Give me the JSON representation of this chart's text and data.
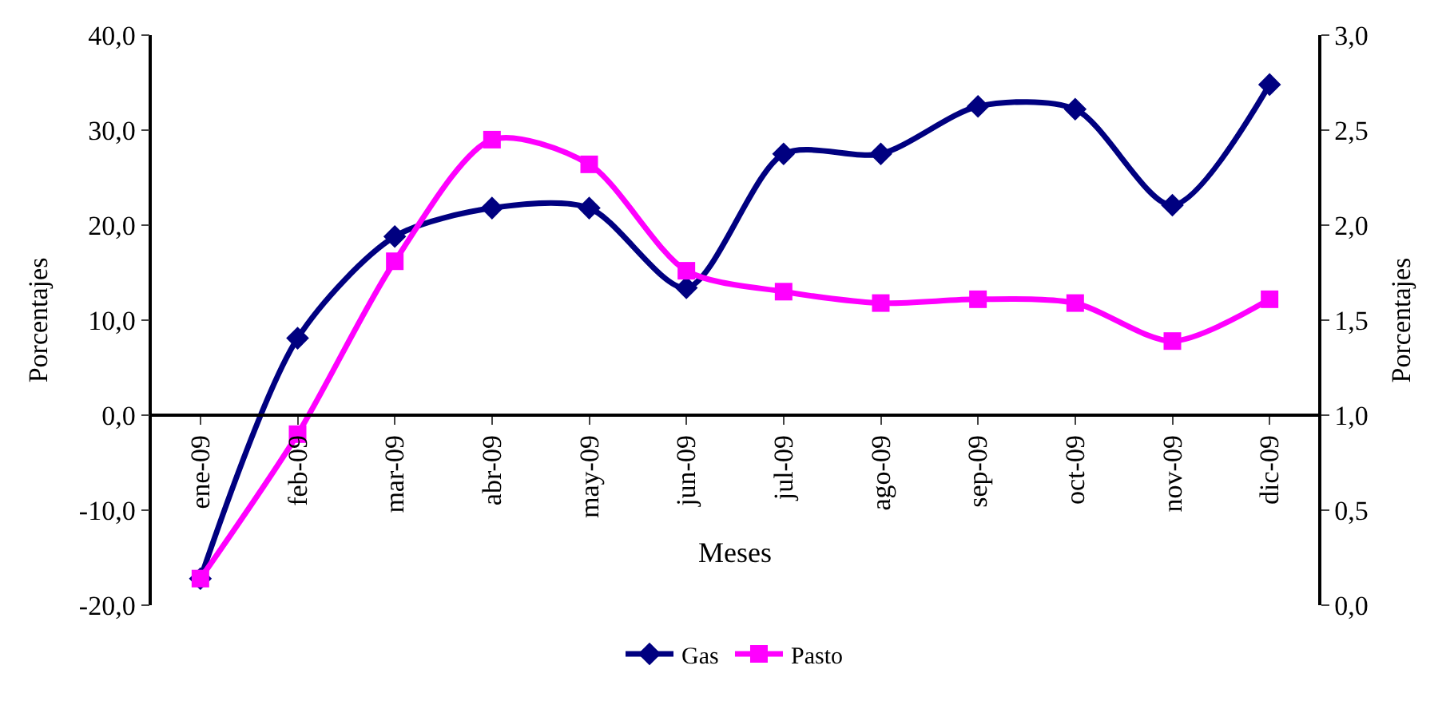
{
  "chart_data": {
    "type": "line",
    "xlabel": "Meses",
    "ylabel": "Porcentajes",
    "y2label": "Porcentajes",
    "categories": [
      "ene-09",
      "feb-09",
      "mar-09",
      "abr-09",
      "may-09",
      "jun-09",
      "jul-09",
      "ago-09",
      "sep-09",
      "oct-09",
      "nov-09",
      "dic-09"
    ],
    "series": [
      {
        "name": "Gas",
        "color": "#000080",
        "marker": "diamond",
        "values": [
          -17.2,
          8.1,
          18.8,
          21.8,
          21.8,
          13.4,
          27.5,
          27.5,
          32.5,
          32.2,
          22.1,
          34.8
        ]
      },
      {
        "name": "Pasto",
        "color": "#ff00ff",
        "marker": "square",
        "axis": "y2",
        "values": [
          0.14,
          0.9,
          1.81,
          2.45,
          2.32,
          1.76,
          1.65,
          1.59,
          1.61,
          1.59,
          1.39,
          1.61
        ]
      }
    ],
    "ylim": [
      -20,
      40
    ],
    "yticks": [
      {
        "value": -20,
        "label": "-20,0"
      },
      {
        "value": -10,
        "label": "-10,0"
      },
      {
        "value": 0,
        "label": "0,0"
      },
      {
        "value": 10,
        "label": "10,0"
      },
      {
        "value": 20,
        "label": "20,0"
      },
      {
        "value": 30,
        "label": "30,0"
      },
      {
        "value": 40,
        "label": "40,0"
      }
    ],
    "y2lim": [
      0,
      3
    ],
    "y2ticks": [
      {
        "value": 0,
        "label": "0,0"
      },
      {
        "value": 0.5,
        "label": "0,5"
      },
      {
        "value": 1,
        "label": "1,0"
      },
      {
        "value": 1.5,
        "label": "1,5"
      },
      {
        "value": 2,
        "label": "2,0"
      },
      {
        "value": 2.5,
        "label": "2,5"
      },
      {
        "value": 3,
        "label": "3,0"
      }
    ],
    "legend": "bottom"
  }
}
